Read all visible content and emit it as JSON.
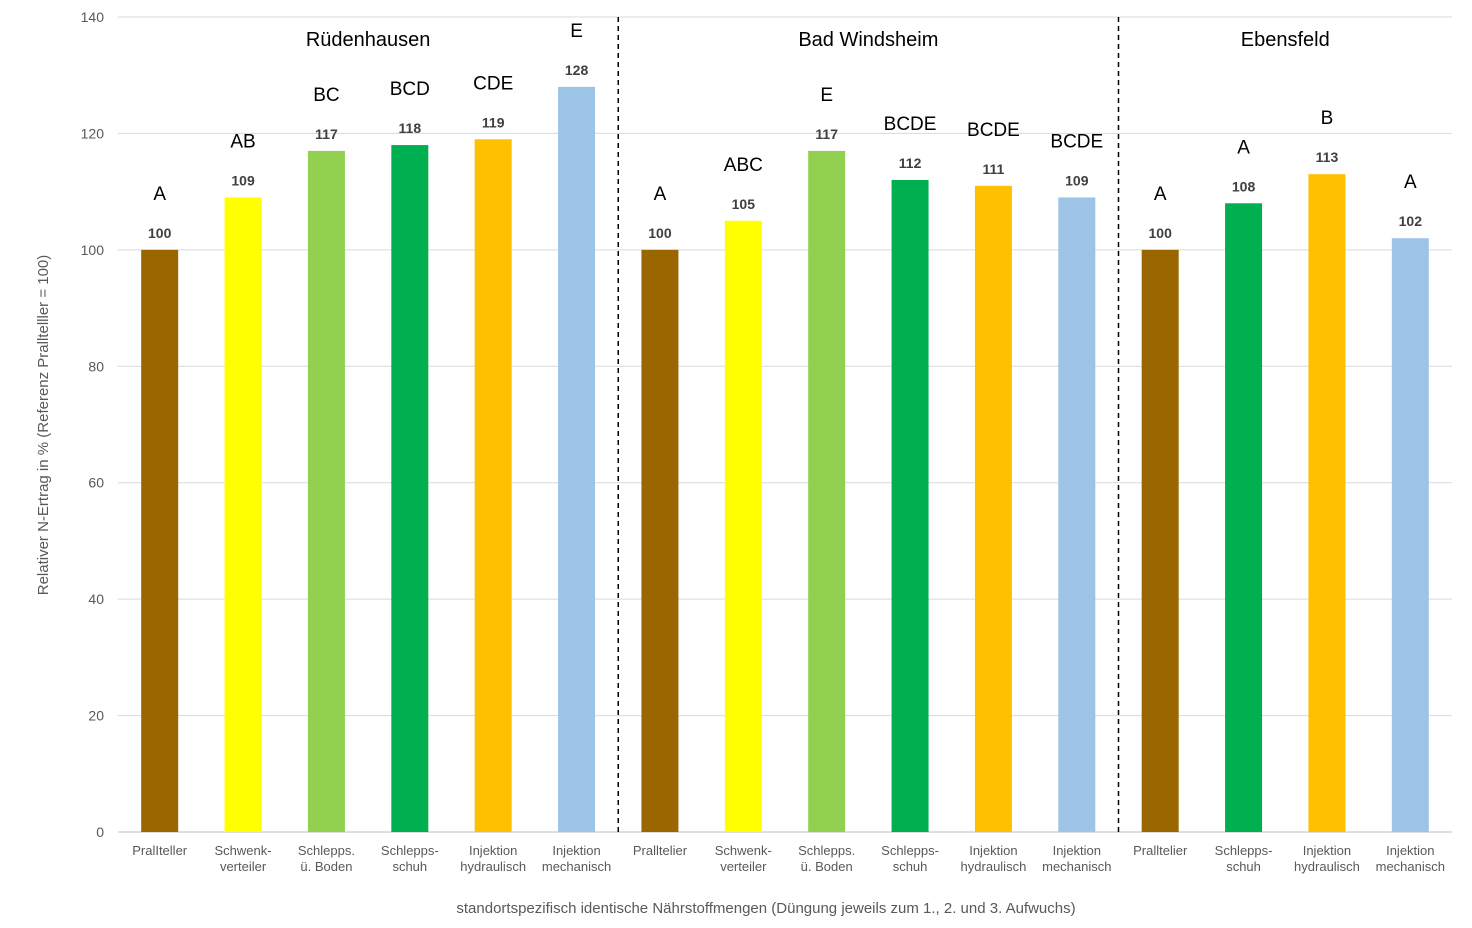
{
  "chart_data": {
    "type": "bar",
    "ylabel": "Relativer N-Ertrag in % (Referenz Pralltelller = 100)",
    "xlabel": "standortspezifisch identische Nährstoffmengen (Düngung jeweils zum 1., 2. und 3. Aufwuchs)",
    "ylim": [
      0,
      140
    ],
    "yticks": [
      "0",
      "20",
      "40",
      "60",
      "80",
      "100",
      "120",
      "140"
    ],
    "grid": true,
    "colors": {
      "brown": "#996600",
      "yellow": "#ffff00",
      "lightgreen": "#92d050",
      "green": "#00b050",
      "orange": "#ffc000",
      "lightblue": "#9dc3e6"
    },
    "groups": [
      {
        "name": "Rüdenhausen",
        "bars": [
          {
            "label": [
              "PralIteller"
            ],
            "value": 100,
            "sig": "A",
            "color": "brown"
          },
          {
            "label": [
              "Schwenk-",
              "verteiler"
            ],
            "value": 109,
            "sig": "AB",
            "color": "yellow"
          },
          {
            "label": [
              "Schlepps.",
              "ü. Boden"
            ],
            "value": 117,
            "sig": "BC",
            "color": "lightgreen"
          },
          {
            "label": [
              "Schlepps-",
              "schuh"
            ],
            "value": 118,
            "sig": "BCD",
            "color": "green"
          },
          {
            "label": [
              "Injektion",
              "hydraulisch"
            ],
            "value": 119,
            "sig": "CDE",
            "color": "orange"
          },
          {
            "label": [
              "Injektion",
              "mechanisch"
            ],
            "value": 128,
            "sig": "E",
            "color": "lightblue"
          }
        ]
      },
      {
        "name": "Bad Windsheim",
        "bars": [
          {
            "label": [
              "Pralltelier"
            ],
            "value": 100,
            "sig": "A",
            "color": "brown"
          },
          {
            "label": [
              "Schwenk-",
              "verteiler"
            ],
            "value": 105,
            "sig": "ABC",
            "color": "yellow"
          },
          {
            "label": [
              "Schlepps.",
              "ü. Boden"
            ],
            "value": 117,
            "sig": "E",
            "color": "lightgreen"
          },
          {
            "label": [
              "Schlepps-",
              "schuh"
            ],
            "value": 112,
            "sig": "BCDE",
            "color": "green"
          },
          {
            "label": [
              "Injektion",
              "hydraulisch"
            ],
            "value": 111,
            "sig": "BCDE",
            "color": "orange"
          },
          {
            "label": [
              "Injektion",
              "mechanisch"
            ],
            "value": 109,
            "sig": "BCDE",
            "color": "lightblue"
          }
        ]
      },
      {
        "name": "Ebensfeld",
        "bars": [
          {
            "label": [
              "Pralltelier"
            ],
            "value": 100,
            "sig": "A",
            "color": "brown"
          },
          {
            "label": [
              "Schlepps-",
              "schuh"
            ],
            "value": 108,
            "sig": "A",
            "color": "green"
          },
          {
            "label": [
              "Injektion",
              "hydraulisch"
            ],
            "value": 113,
            "sig": "B",
            "color": "orange"
          },
          {
            "label": [
              "Injektion",
              "mechanisch"
            ],
            "value": 102,
            "sig": "A",
            "color": "lightblue"
          }
        ]
      }
    ]
  }
}
